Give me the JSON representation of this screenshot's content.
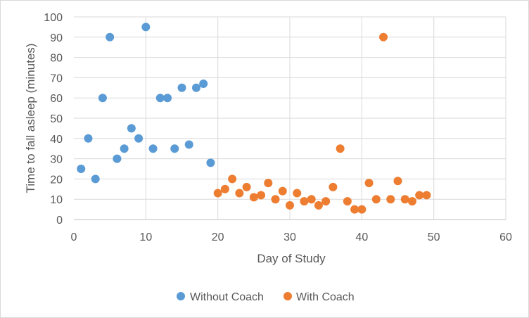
{
  "chart_data": {
    "type": "scatter",
    "title": "",
    "xlabel": "Day of Study",
    "ylabel": "Time to fall asleep (minutes)",
    "xlim": [
      0,
      60
    ],
    "ylim": [
      0,
      100
    ],
    "x_ticks": [
      0,
      10,
      20,
      30,
      40,
      50,
      60
    ],
    "y_ticks": [
      0,
      10,
      20,
      30,
      40,
      50,
      60,
      70,
      80,
      90,
      100
    ],
    "grid": true,
    "legend_position": "bottom",
    "series": [
      {
        "name": "Without Coach",
        "color": "#5b9bd5",
        "points": [
          [
            1,
            25
          ],
          [
            2,
            40
          ],
          [
            3,
            20
          ],
          [
            4,
            60
          ],
          [
            5,
            90
          ],
          [
            6,
            30
          ],
          [
            7,
            35
          ],
          [
            8,
            45
          ],
          [
            9,
            40
          ],
          [
            10,
            95
          ],
          [
            11,
            35
          ],
          [
            12,
            60
          ],
          [
            13,
            60
          ],
          [
            14,
            35
          ],
          [
            15,
            65
          ],
          [
            16,
            37
          ],
          [
            17,
            65
          ],
          [
            18,
            67
          ],
          [
            19,
            28
          ]
        ]
      },
      {
        "name": "With Coach",
        "color": "#ed7d31",
        "points": [
          [
            20,
            13
          ],
          [
            21,
            15
          ],
          [
            22,
            20
          ],
          [
            23,
            13
          ],
          [
            24,
            16
          ],
          [
            25,
            11
          ],
          [
            26,
            12
          ],
          [
            27,
            18
          ],
          [
            28,
            10
          ],
          [
            29,
            14
          ],
          [
            30,
            7
          ],
          [
            31,
            13
          ],
          [
            32,
            9
          ],
          [
            33,
            10
          ],
          [
            34,
            7
          ],
          [
            35,
            9
          ],
          [
            36,
            16
          ],
          [
            37,
            35
          ],
          [
            38,
            9
          ],
          [
            39,
            5
          ],
          [
            40,
            5
          ],
          [
            41,
            18
          ],
          [
            42,
            10
          ],
          [
            43,
            90
          ],
          [
            44,
            10
          ],
          [
            45,
            19
          ],
          [
            46,
            10
          ],
          [
            47,
            9
          ],
          [
            48,
            12
          ],
          [
            49,
            12
          ]
        ]
      }
    ]
  }
}
